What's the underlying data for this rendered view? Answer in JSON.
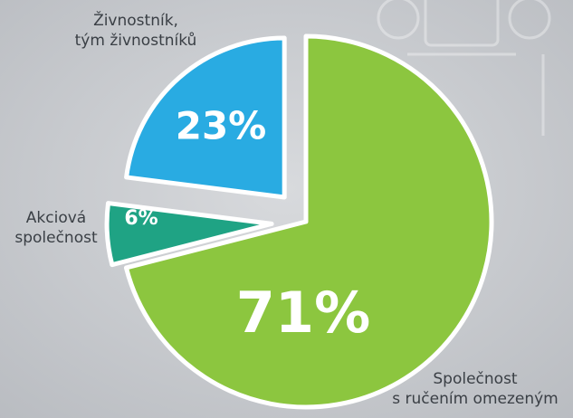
{
  "chart_data": {
    "type": "pie",
    "categories": [
      "Společnost\ns ručením omezeným",
      "Akciová\nspolečnost",
      "Živnostník,\ntým živnostníků"
    ],
    "values": [
      71,
      6,
      23
    ],
    "value_labels": [
      "71%",
      "6%",
      "23%"
    ],
    "colors": [
      "#8cc63f",
      "#1fa384",
      "#29abe2"
    ]
  }
}
